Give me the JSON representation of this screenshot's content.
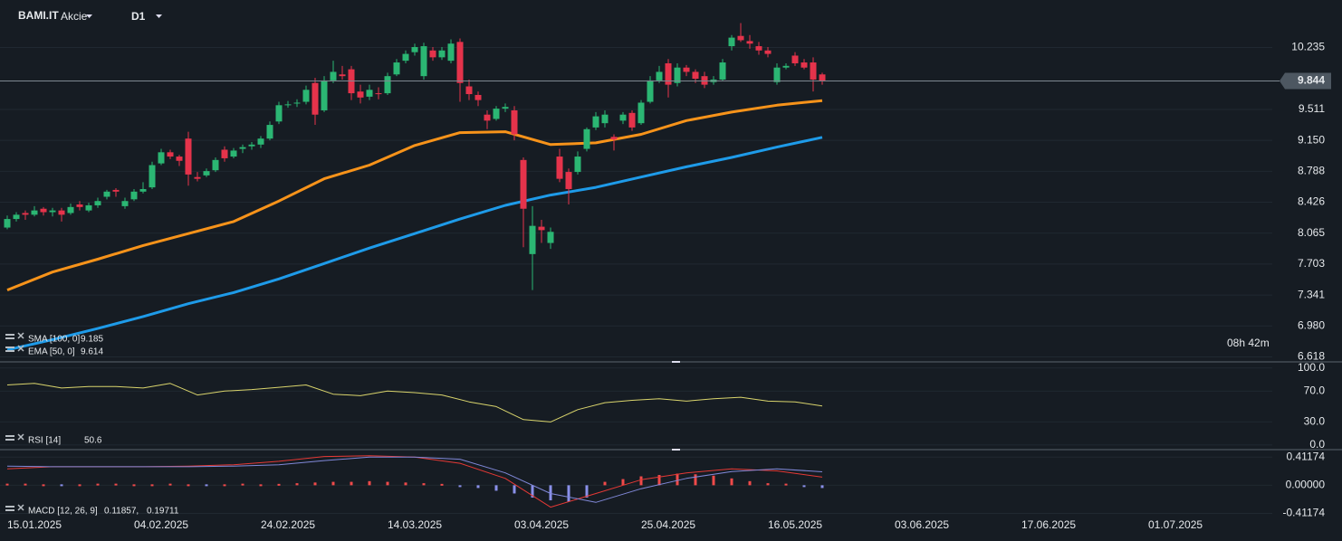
{
  "chart_data": [
    {
      "type": "candlestick",
      "title": "BAMI.IT",
      "subtitle": "Akcie",
      "timeframe": "D1",
      "countdown": "08h 42m",
      "last_price": 9.844,
      "up_color": "#2bb673",
      "down_color": "#e5334b",
      "xlim": [
        -0.8,
        139.7
      ],
      "xticks": [
        {
          "value": 0,
          "label": "15.01.2025"
        },
        {
          "value": 14,
          "label": "04.02.2025"
        },
        {
          "value": 28,
          "label": "24.02.2025"
        },
        {
          "value": 42,
          "label": "14.03.2025"
        },
        {
          "value": 56,
          "label": "03.04.2025"
        },
        {
          "value": 70,
          "label": "25.04.2025"
        },
        {
          "value": 84,
          "label": "16.05.2025"
        },
        {
          "value": 98,
          "label": "03.06.2025"
        },
        {
          "value": 112,
          "label": "17.06.2025"
        },
        {
          "value": 126,
          "label": "01.07.2025"
        }
      ],
      "ylim": [
        6.56,
        10.79
      ],
      "yticks": [
        10.235,
        9.511,
        {
          "value": 9.15,
          "label": "9.150"
        },
        8.788,
        8.426,
        8.065,
        7.703,
        7.341,
        {
          "value": 6.98,
          "label": "6.980"
        },
        6.618
      ],
      "candles": [
        [
          8.13,
          8.27,
          8.11,
          8.23
        ],
        [
          8.23,
          8.31,
          8.2,
          8.28
        ],
        [
          8.3,
          8.33,
          8.22,
          8.28
        ],
        [
          8.28,
          8.38,
          8.26,
          8.33
        ],
        [
          8.35,
          8.37,
          8.27,
          8.31
        ],
        [
          8.31,
          8.36,
          8.26,
          8.33
        ],
        [
          8.33,
          8.36,
          8.2,
          8.28
        ],
        [
          8.3,
          8.41,
          8.28,
          8.37
        ],
        [
          8.4,
          8.44,
          8.33,
          8.37
        ],
        [
          8.33,
          8.42,
          8.31,
          8.39
        ],
        [
          8.39,
          8.48,
          8.36,
          8.44
        ],
        [
          8.49,
          8.57,
          8.46,
          8.55
        ],
        [
          8.57,
          8.59,
          8.49,
          8.55
        ],
        [
          8.38,
          8.48,
          8.35,
          8.44
        ],
        [
          8.46,
          8.58,
          8.44,
          8.55
        ],
        [
          8.55,
          8.66,
          8.53,
          8.58
        ],
        [
          8.6,
          8.9,
          8.58,
          8.86
        ],
        [
          8.88,
          9.05,
          8.86,
          9.01
        ],
        [
          9.01,
          9.04,
          8.93,
          8.96
        ],
        [
          8.96,
          8.98,
          8.85,
          8.91
        ],
        [
          9.17,
          9.25,
          8.62,
          8.75
        ],
        [
          8.72,
          8.78,
          8.67,
          8.7
        ],
        [
          8.74,
          8.82,
          8.72,
          8.79
        ],
        [
          8.8,
          8.95,
          8.78,
          8.92
        ],
        [
          9.04,
          9.08,
          8.9,
          8.94
        ],
        [
          8.96,
          9.06,
          8.94,
          9.03
        ],
        [
          9.05,
          9.1,
          9.0,
          9.07
        ],
        [
          9.08,
          9.13,
          9.04,
          9.1
        ],
        [
          9.1,
          9.2,
          9.06,
          9.17
        ],
        [
          9.17,
          9.37,
          9.15,
          9.33
        ],
        [
          9.37,
          9.6,
          9.34,
          9.56
        ],
        [
          9.56,
          9.61,
          9.53,
          9.57
        ],
        [
          9.58,
          9.63,
          9.54,
          9.59
        ],
        [
          9.6,
          9.79,
          9.57,
          9.74
        ],
        [
          9.82,
          9.88,
          9.33,
          9.45
        ],
        [
          9.5,
          9.9,
          9.48,
          9.85
        ],
        [
          9.85,
          10.08,
          9.82,
          9.95
        ],
        [
          9.92,
          10.02,
          9.86,
          9.9
        ],
        [
          9.98,
          10.02,
          9.62,
          9.7
        ],
        [
          9.72,
          9.8,
          9.58,
          9.65
        ],
        [
          9.66,
          9.8,
          9.62,
          9.74
        ],
        [
          9.7,
          9.77,
          9.63,
          9.69
        ],
        [
          9.7,
          9.94,
          9.68,
          9.9
        ],
        [
          9.92,
          10.1,
          9.9,
          10.06
        ],
        [
          10.08,
          10.2,
          10.05,
          10.16
        ],
        [
          10.18,
          10.28,
          10.14,
          10.24
        ],
        [
          9.9,
          10.29,
          9.86,
          10.25
        ],
        [
          10.2,
          10.24,
          10.08,
          10.12
        ],
        [
          10.12,
          10.24,
          10.09,
          10.2
        ],
        [
          10.08,
          10.33,
          10.05,
          10.28
        ],
        [
          10.3,
          10.34,
          9.6,
          9.82
        ],
        [
          9.78,
          9.86,
          9.62,
          9.69
        ],
        [
          9.68,
          9.72,
          9.55,
          9.62
        ],
        [
          9.45,
          9.5,
          9.28,
          9.38
        ],
        [
          9.4,
          9.55,
          9.38,
          9.52
        ],
        [
          9.52,
          9.58,
          9.48,
          9.54
        ],
        [
          9.5,
          9.55,
          9.15,
          9.22
        ],
        [
          8.92,
          8.95,
          7.9,
          8.35
        ],
        [
          7.82,
          8.38,
          7.4,
          8.15
        ],
        [
          8.14,
          8.22,
          7.95,
          8.1
        ],
        [
          7.95,
          8.13,
          7.88,
          8.08
        ],
        [
          8.96,
          9.05,
          8.66,
          8.7
        ],
        [
          8.78,
          8.82,
          8.4,
          8.58
        ],
        [
          8.78,
          9.02,
          8.75,
          8.96
        ],
        [
          9.05,
          9.3,
          9.02,
          9.28
        ],
        [
          9.3,
          9.48,
          9.27,
          9.43
        ],
        [
          9.35,
          9.5,
          9.3,
          9.45
        ],
        [
          9.19,
          9.22,
          9.03,
          9.16
        ],
        [
          9.38,
          9.48,
          9.34,
          9.45
        ],
        [
          9.47,
          9.5,
          9.26,
          9.3
        ],
        [
          9.35,
          9.62,
          9.33,
          9.59
        ],
        [
          9.6,
          9.9,
          9.58,
          9.85
        ],
        [
          9.85,
          10.02,
          9.82,
          9.95
        ],
        [
          10.05,
          10.1,
          9.65,
          9.8
        ],
        [
          9.82,
          10.05,
          9.78,
          10.0
        ],
        [
          10.0,
          10.03,
          9.9,
          9.95
        ],
        [
          9.95,
          9.98,
          9.82,
          9.87
        ],
        [
          9.9,
          9.95,
          9.76,
          9.8
        ],
        [
          9.83,
          9.9,
          9.8,
          9.86
        ],
        [
          9.86,
          10.1,
          9.84,
          10.06
        ],
        [
          10.25,
          10.38,
          10.2,
          10.35
        ],
        [
          10.37,
          10.52,
          10.3,
          10.32
        ],
        [
          10.31,
          10.38,
          10.22,
          10.28
        ],
        [
          10.25,
          10.3,
          10.15,
          10.2
        ],
        [
          10.2,
          10.24,
          10.12,
          10.16
        ],
        [
          9.83,
          10.05,
          9.8,
          10.0
        ],
        [
          10.0,
          10.05,
          9.98,
          10.02
        ],
        [
          10.14,
          10.18,
          10.02,
          10.05
        ],
        [
          10.06,
          10.1,
          9.98,
          10.0
        ],
        [
          10.06,
          10.12,
          9.72,
          9.86
        ],
        [
          9.92,
          9.94,
          9.8,
          9.844
        ]
      ],
      "overlay_x": [
        0,
        5,
        10,
        15,
        20,
        25,
        30,
        35,
        40,
        45,
        50,
        55,
        60,
        65,
        70,
        75,
        80,
        85,
        90
      ],
      "overlays": [
        {
          "name": "SMA [100, 0]",
          "color": "#1e9be9",
          "values": [
            6.7,
            6.82,
            6.95,
            7.09,
            7.24,
            7.37,
            7.53,
            7.71,
            7.89,
            8.06,
            8.23,
            8.39,
            8.51,
            8.6,
            8.72,
            8.84,
            8.95,
            9.07,
            9.185
          ]
        },
        {
          "name": "EMA [50, 0]",
          "color": "#f7931a",
          "values": [
            7.4,
            7.61,
            7.76,
            7.92,
            8.06,
            8.2,
            8.44,
            8.7,
            8.86,
            9.09,
            9.24,
            9.25,
            9.1,
            9.12,
            9.22,
            9.38,
            9.48,
            9.56,
            9.614
          ]
        }
      ]
    },
    {
      "type": "line",
      "name": "RSI [14]",
      "last_value": 50.6,
      "color": "#d9d46c",
      "ylim": [
        -6,
        108
      ],
      "yticks": [
        {
          "value": 100,
          "label": "100.0"
        },
        {
          "value": 70,
          "label": "70.0"
        },
        {
          "value": 30,
          "label": "30.0"
        },
        {
          "value": 0,
          "label": "0.0"
        }
      ],
      "x": [
        0,
        3,
        6,
        9,
        12,
        15,
        18,
        21,
        24,
        27,
        30,
        33,
        36,
        39,
        42,
        45,
        48,
        51,
        54,
        57,
        60,
        63,
        66,
        69,
        72,
        75,
        78,
        81,
        84,
        87,
        90
      ],
      "values": [
        78,
        80,
        74,
        76,
        76,
        74,
        80,
        65,
        70,
        72,
        75,
        78,
        66,
        64,
        70,
        68,
        65,
        56,
        50,
        33,
        30,
        46,
        55,
        58,
        60,
        57,
        60,
        62,
        57,
        56,
        50.6
      ]
    },
    {
      "type": "macd",
      "name": "MACD [12, 26, 9]",
      "ylim": [
        -0.51,
        0.52
      ],
      "yticks": [
        0.41174,
        {
          "value": 0,
          "label": "0.00000"
        },
        -0.41174
      ],
      "x": [
        0,
        5,
        10,
        15,
        20,
        25,
        30,
        35,
        40,
        45,
        50,
        55,
        60,
        65,
        70,
        75,
        80,
        85,
        90
      ],
      "series": [
        {
          "name": "MACD",
          "color": "#e53935",
          "values": [
            0.24,
            0.27,
            0.27,
            0.27,
            0.28,
            0.3,
            0.35,
            0.42,
            0.43,
            0.41,
            0.32,
            0.1,
            -0.32,
            -0.12,
            0.08,
            0.18,
            0.24,
            0.21,
            0.11857
          ],
          "value_label": "0.11857,"
        },
        {
          "name": "Signal",
          "color": "#8088d8",
          "values": [
            0.28,
            0.27,
            0.27,
            0.27,
            0.27,
            0.28,
            0.3,
            0.36,
            0.41,
            0.41,
            0.38,
            0.18,
            -0.12,
            -0.25,
            -0.05,
            0.1,
            0.2,
            0.24,
            0.19711
          ],
          "value_label": "0.19711"
        }
      ],
      "hist_x": [
        0,
        2,
        4,
        6,
        8,
        10,
        12,
        14,
        16,
        18,
        20,
        22,
        24,
        26,
        28,
        30,
        32,
        34,
        36,
        38,
        40,
        42,
        44,
        46,
        48,
        50,
        52,
        54,
        56,
        58,
        60,
        62,
        64,
        66,
        68,
        70,
        72,
        74,
        76,
        78,
        80,
        82,
        84,
        86,
        88,
        90
      ],
      "hist_up_color": "#f04a4a",
      "hist_down_color": "#8a90ea",
      "histogram": [
        0.01,
        0.01,
        0.0,
        -0.01,
        0.0,
        0.01,
        0.01,
        0.0,
        0.0,
        0.01,
        0.0,
        -0.01,
        0.0,
        0.01,
        0.0,
        0.02,
        0.03,
        0.04,
        0.05,
        0.05,
        0.06,
        0.05,
        0.04,
        0.03,
        0.02,
        -0.02,
        -0.04,
        -0.08,
        -0.12,
        -0.18,
        -0.22,
        -0.24,
        -0.18,
        0.05,
        0.09,
        0.13,
        0.15,
        0.17,
        0.16,
        0.14,
        0.1,
        0.06,
        0.03,
        0.01,
        -0.02,
        -0.04
      ]
    }
  ]
}
